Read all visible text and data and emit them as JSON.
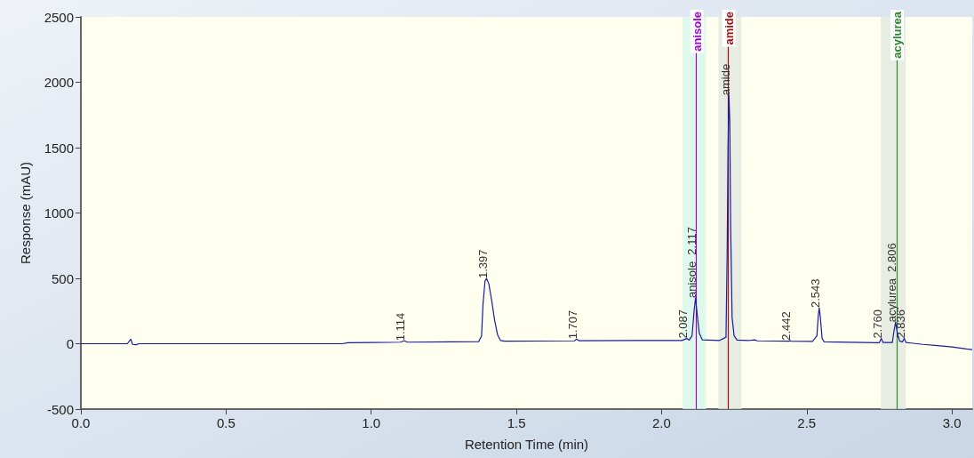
{
  "chart_data": {
    "type": "line",
    "xlabel": "Retention Time (min)",
    "ylabel": "Response (mAU)",
    "xlim": [
      0,
      3.07
    ],
    "xticks": [
      {
        "value": 0,
        "label": "0.0"
      },
      {
        "value": 0.5,
        "label": "0.5"
      },
      {
        "value": 1,
        "label": "1.0"
      },
      {
        "value": 1.5,
        "label": "1.5"
      },
      {
        "value": 2,
        "label": "2.0"
      },
      {
        "value": 2.5,
        "label": "2.5"
      },
      {
        "value": 3,
        "label": "3.0"
      }
    ],
    "ylim": [
      -500,
      2500
    ],
    "yticks": [
      -500,
      0,
      500,
      1000,
      1500,
      2000,
      2500
    ],
    "grid": false,
    "marker": "none",
    "line_style": "solid",
    "series": [
      {
        "color": "#1a1a9a",
        "x": [
          0,
          0.16,
          0.172,
          0.178,
          0.19,
          0.2,
          0.9,
          0.92,
          1.0,
          1.1,
          1.114,
          1.125,
          1.37,
          1.38,
          1.385,
          1.392,
          1.397,
          1.405,
          1.415,
          1.425,
          1.435,
          1.445,
          1.46,
          1.7,
          1.707,
          1.715,
          1.9,
          2.07,
          2.087,
          2.095,
          2.105,
          2.112,
          2.117,
          2.122,
          2.13,
          2.14,
          2.2,
          2.222,
          2.226,
          2.229,
          2.232,
          2.235,
          2.238,
          2.243,
          2.25,
          2.26,
          2.3,
          2.32,
          2.33,
          2.44,
          2.442,
          2.445,
          2.52,
          2.535,
          2.54,
          2.543,
          2.547,
          2.553,
          2.56,
          2.7,
          2.75,
          2.757,
          2.763,
          2.795,
          2.8,
          2.806,
          2.812,
          2.82,
          2.83,
          2.836,
          2.842,
          2.86,
          2.9,
          2.95,
          3.0,
          3.05,
          3.07
        ],
        "values": [
          0,
          0,
          35,
          -5,
          -8,
          0,
          0,
          8,
          10,
          12,
          22,
          12,
          16,
          60,
          300,
          480,
          500,
          460,
          330,
          180,
          70,
          25,
          20,
          22,
          35,
          23,
          25,
          25,
          40,
          28,
          60,
          250,
          350,
          240,
          80,
          30,
          25,
          50,
          700,
          1500,
          1900,
          1700,
          900,
          200,
          60,
          28,
          24,
          30,
          22,
          20,
          25,
          20,
          18,
          60,
          220,
          275,
          200,
          40,
          15,
          10,
          8,
          40,
          10,
          10,
          90,
          165,
          80,
          20,
          15,
          40,
          10,
          5,
          -5,
          -15,
          -25,
          -40,
          -45
        ]
      }
    ],
    "ref_lines": [
      {
        "axis": "x",
        "value": 2.117,
        "label": "anisole",
        "color": "#a000d0"
      },
      {
        "axis": "x",
        "value": 2.235,
        "label": "amide",
        "color": "#a01010"
      },
      {
        "axis": "x",
        "value": 2.81,
        "label": "acylurea",
        "color": "#2a8a2a"
      }
    ],
    "bands": [
      {
        "axis": "x",
        "from": 2.073,
        "to": 2.153,
        "color": "#d6f8ea"
      },
      {
        "axis": "x",
        "from": 2.196,
        "to": 2.275,
        "color": "#e2e8e0"
      },
      {
        "axis": "x",
        "from": 2.755,
        "to": 2.841,
        "color": "#e2e8e0"
      }
    ],
    "annotations": [
      {
        "text": "1.114",
        "x": 1.114,
        "y": 22
      },
      {
        "text": "1.397",
        "x": 1.397,
        "y": 500
      },
      {
        "text": "1.707",
        "x": 1.707,
        "y": 35
      },
      {
        "text": "2.087",
        "x": 2.087,
        "y": 40
      },
      {
        "text": "anisole  2.117",
        "x": 2.117,
        "y": 350
      },
      {
        "text": "amide",
        "x": 2.232,
        "y": 1900
      },
      {
        "text": "2.442",
        "x": 2.442,
        "y": 25
      },
      {
        "text": "2.543",
        "x": 2.543,
        "y": 275
      },
      {
        "text": "2.760",
        "x": 2.757,
        "y": 40
      },
      {
        "text": "acylurea  2.806",
        "x": 2.806,
        "y": 165
      },
      {
        "text": "2.836",
        "x": 2.836,
        "y": 40
      }
    ]
  }
}
